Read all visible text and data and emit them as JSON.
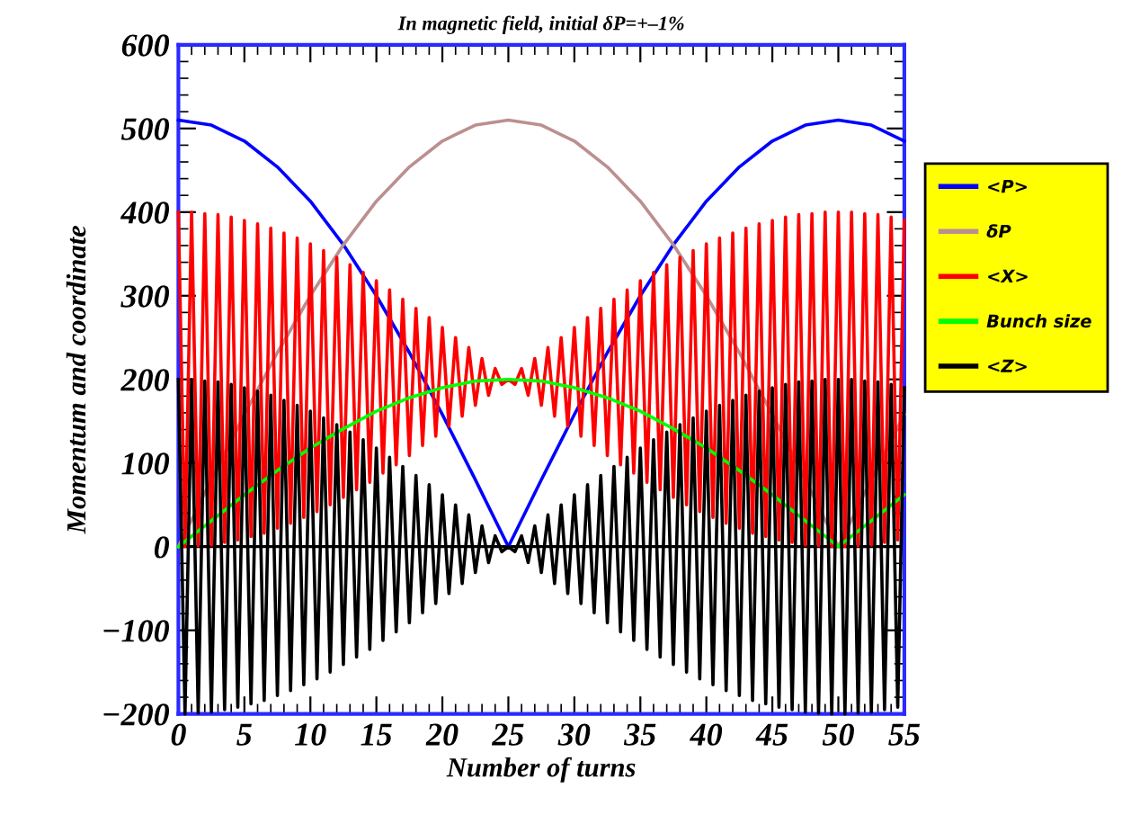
{
  "chart_data": {
    "type": "line",
    "title": "In magnetic field, initial δP=+–1%",
    "xlabel": "Number of turns",
    "ylabel": "Momentum and coordinate",
    "x": [
      0,
      0.5,
      1,
      1.5,
      2,
      2.5,
      3,
      3.5,
      4,
      4.5,
      5,
      5.5,
      6,
      6.5,
      7,
      7.5,
      8,
      8.5,
      9,
      9.5,
      10,
      10.5,
      11,
      11.5,
      12,
      12.5,
      13,
      13.5,
      14,
      14.5,
      15,
      15.5,
      16,
      16.5,
      17,
      17.5,
      18,
      18.5,
      19,
      19.5,
      20,
      20.5,
      21,
      21.5,
      22,
      22.5,
      23,
      23.5,
      24,
      24.5,
      25,
      25.5,
      26,
      26.5,
      27,
      27.5,
      28,
      28.5,
      29,
      29.5,
      30,
      30.5,
      31,
      31.5,
      32,
      32.5,
      33,
      33.5,
      34,
      34.5,
      35,
      35.5,
      36,
      36.5,
      37,
      37.5,
      38,
      38.5,
      39,
      39.5,
      40,
      40.5,
      41,
      41.5,
      42,
      42.5,
      43,
      43.5,
      44,
      44.5,
      45,
      45.5,
      46,
      46.5,
      47,
      47.5,
      48,
      48.5,
      49,
      49.5,
      50,
      50.5,
      51,
      51.5,
      52,
      52.5,
      53,
      53.5,
      54,
      54.5,
      55
    ],
    "series": [
      {
        "name": "<P>",
        "color": "#0000ff",
        "x": [
          0,
          2.5,
          5,
          7.5,
          10,
          12.5,
          15,
          17.5,
          20,
          22.5,
          25,
          27.5,
          30,
          32.5,
          35,
          37.5,
          40,
          42.5,
          45,
          47.5,
          50,
          52.5,
          55
        ],
        "values": [
          510,
          504,
          485,
          454,
          413,
          361,
          300,
          232,
          158,
          80,
          0,
          80,
          158,
          232,
          300,
          361,
          413,
          454,
          485,
          504,
          510,
          504,
          485
        ]
      },
      {
        "name": "δP",
        "color": "#bc8f8f",
        "x": [
          0,
          2.5,
          5,
          7.5,
          10,
          12.5,
          15,
          17.5,
          20,
          22.5,
          25,
          27.5,
          30,
          32.5,
          35,
          37.5,
          40,
          42.5,
          45,
          47.5,
          50,
          52.5,
          55
        ],
        "values": [
          0,
          80,
          158,
          232,
          300,
          361,
          413,
          454,
          485,
          504,
          510,
          504,
          485,
          454,
          413,
          361,
          300,
          232,
          158,
          80,
          0,
          80,
          158
        ]
      },
      {
        "name": "<X>",
        "color": "#ff0000",
        "values": [
          400,
          0,
          400,
          1,
          398,
          2,
          397,
          5,
          394,
          8,
          390,
          12,
          386,
          16,
          381,
          22,
          375,
          28,
          369,
          35,
          362,
          42,
          354,
          50,
          346,
          59,
          337,
          68,
          328,
          77,
          318,
          88,
          307,
          98,
          296,
          109,
          285,
          121,
          274,
          132,
          262,
          144,
          250,
          156,
          238,
          169,
          225,
          181,
          213,
          194,
          200,
          194,
          213,
          181,
          225,
          169,
          238,
          156,
          250,
          144,
          262,
          132,
          274,
          121,
          285,
          109,
          296,
          98,
          307,
          88,
          318,
          77,
          328,
          68,
          337,
          59,
          346,
          50,
          354,
          42,
          362,
          35,
          369,
          28,
          375,
          22,
          381,
          16,
          386,
          12,
          390,
          8,
          394,
          5,
          397,
          2,
          398,
          1,
          400,
          0,
          400,
          0,
          400,
          1,
          398,
          2,
          397,
          5,
          394,
          8,
          390
        ]
      },
      {
        "name": "Bunch size",
        "color": "#00ff00",
        "x": [
          0,
          2.5,
          5,
          7.5,
          10,
          12.5,
          15,
          17.5,
          20,
          22.5,
          25,
          27.5,
          30,
          32.5,
          35,
          37.5,
          40,
          42.5,
          45,
          47.5,
          50,
          52.5,
          55
        ],
        "values": [
          0,
          31,
          62,
          91,
          118,
          141,
          162,
          178,
          190,
          198,
          200,
          198,
          190,
          178,
          162,
          141,
          118,
          91,
          62,
          31,
          0,
          31,
          62
        ]
      },
      {
        "name": "<Z>",
        "color": "#000000",
        "values": [
          200,
          -200,
          200,
          -199,
          198,
          -198,
          197,
          -195,
          194,
          -192,
          190,
          -188,
          186,
          -184,
          181,
          -178,
          175,
          -172,
          169,
          -165,
          162,
          -158,
          154,
          -150,
          146,
          -141,
          137,
          -132,
          128,
          -123,
          118,
          -112,
          107,
          -102,
          96,
          -91,
          85,
          -79,
          74,
          -68,
          62,
          -56,
          50,
          -44,
          38,
          -31,
          25,
          -19,
          13,
          -6,
          0,
          -6,
          13,
          -19,
          25,
          -31,
          38,
          -44,
          50,
          -56,
          62,
          -68,
          74,
          -79,
          85,
          -91,
          96,
          -102,
          107,
          -112,
          118,
          -123,
          128,
          -132,
          137,
          -141,
          146,
          -150,
          154,
          -158,
          162,
          -165,
          169,
          -172,
          175,
          -178,
          181,
          -184,
          186,
          -188,
          190,
          -192,
          194,
          -195,
          197,
          -198,
          198,
          -199,
          200,
          -200,
          200,
          -200,
          200,
          -199,
          198,
          -198,
          197,
          -195,
          194,
          -192,
          190
        ]
      }
    ],
    "xlim": [
      0,
      55
    ],
    "ylim": [
      -200,
      600
    ],
    "xticks": [
      0,
      5,
      10,
      15,
      20,
      25,
      30,
      35,
      40,
      45,
      50,
      55
    ],
    "yticks": [
      {
        "value": -200,
        "label": "−200"
      },
      {
        "value": -100,
        "label": "−100"
      },
      0,
      100,
      200,
      300,
      400,
      500,
      600
    ],
    "ref_lines": [
      {
        "axis": "y",
        "value": 0,
        "color": "#000000"
      }
    ],
    "grid": false,
    "legend": "right",
    "marker": "none",
    "line_style": "solid"
  }
}
